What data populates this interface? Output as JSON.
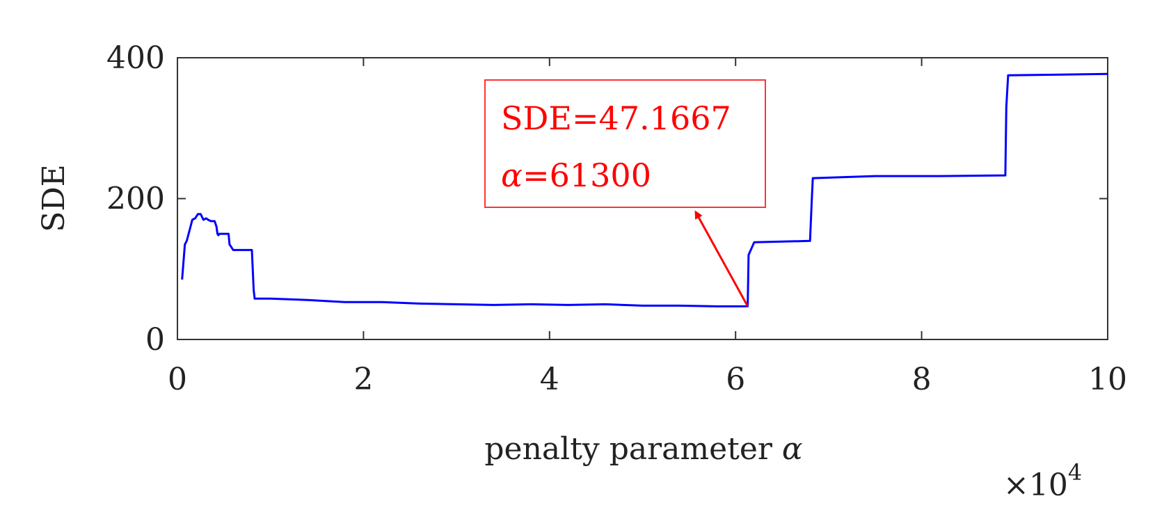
{
  "chart_data": {
    "type": "line",
    "title": "",
    "xlabel": "penalty parameter",
    "xlabel_symbol": "α",
    "ylabel": "SDE",
    "x_multiplier": "×10",
    "x_multiplier_exp": "4",
    "xlim": [
      0,
      100000
    ],
    "ylim": [
      0,
      400
    ],
    "xticks": [
      0,
      20000,
      40000,
      60000,
      80000,
      100000
    ],
    "xtick_labels": [
      "0",
      "2",
      "4",
      "6",
      "8",
      "10"
    ],
    "yticks": [
      0,
      200,
      400
    ],
    "ytick_labels": [
      "0",
      "200",
      "400"
    ],
    "grid": false,
    "series": [
      {
        "color": "#0000ff",
        "x": [
          500,
          800,
          1000,
          1300,
          1600,
          1900,
          2200,
          2500,
          2800,
          3100,
          3300,
          3600,
          4000,
          4200,
          4300,
          4400,
          4500,
          5500,
          5600,
          6000,
          6200,
          8000,
          8200,
          8300,
          10000,
          14000,
          18000,
          22000,
          26000,
          30000,
          34000,
          38000,
          42000,
          46000,
          50000,
          54000,
          58000,
          60000,
          61200,
          61300,
          61400,
          62000,
          68000,
          68200,
          68300,
          75000,
          82000,
          89000,
          89100,
          89300,
          95000,
          100000
        ],
        "y": [
          85,
          135,
          140,
          155,
          170,
          172,
          178,
          178,
          170,
          172,
          170,
          168,
          168,
          160,
          150,
          148,
          150,
          150,
          135,
          127,
          127,
          127,
          70,
          58,
          58,
          56,
          53,
          53,
          51,
          50,
          49,
          50,
          49,
          50,
          48,
          48,
          47,
          47,
          47.1667,
          47.1667,
          120,
          138,
          140,
          200,
          229,
          232,
          232,
          233,
          330,
          375,
          376,
          377
        ]
      }
    ],
    "annotation": {
      "line1": "SDE=47.1667",
      "line2_symbol": "α",
      "line2_value": "=61300",
      "target": {
        "x": 61300,
        "y": 47.1667
      },
      "color": "#ff0000"
    }
  }
}
